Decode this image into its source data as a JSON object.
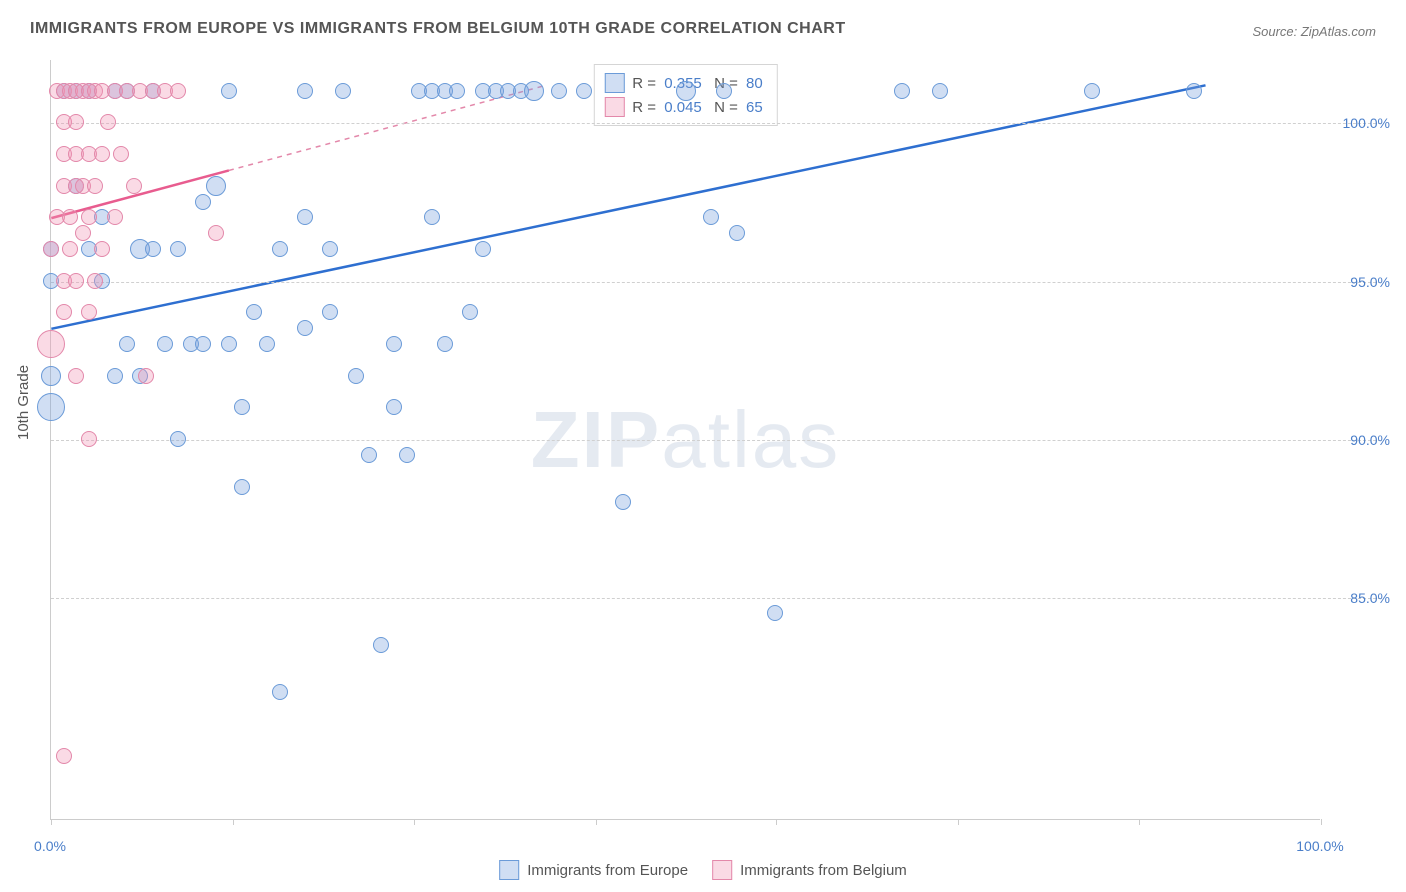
{
  "title": "IMMIGRANTS FROM EUROPE VS IMMIGRANTS FROM BELGIUM 10TH GRADE CORRELATION CHART",
  "source_label": "Source: ",
  "source_name": "ZipAtlas.com",
  "watermark": {
    "bold": "ZIP",
    "rest": "atlas"
  },
  "y_axis_label": "10th Grade",
  "chart": {
    "type": "scatter",
    "xlim": [
      0,
      100
    ],
    "ylim": [
      78,
      102
    ],
    "y_ticks": [
      85.0,
      90.0,
      95.0,
      100.0
    ],
    "y_tick_labels": [
      "85.0%",
      "90.0%",
      "95.0%",
      "100.0%"
    ],
    "y_tick_color": "#4a7ec9",
    "x_ticks": [
      0,
      14.3,
      28.6,
      42.9,
      57.1,
      71.4,
      85.7,
      100
    ],
    "x_end_labels": {
      "min": "0.0%",
      "max": "100.0%"
    },
    "x_label_color": "#4a7ec9",
    "grid_color": "#d0d0d0",
    "background_color": "#ffffff",
    "series": [
      {
        "name": "Immigrants from Europe",
        "fill": "rgba(120,160,220,0.35)",
        "stroke": "#6b9bd8",
        "trend_color": "#2e6fd0",
        "trend_dash_color": "#6b9bd8",
        "r_value": "0.355",
        "n_value": "80",
        "trend": {
          "x1": 0,
          "y1": 93.5,
          "x2": 91,
          "y2": 101.2,
          "x_solid_end": 91
        },
        "points": [
          {
            "x": 0,
            "y": 91,
            "r": 14
          },
          {
            "x": 0,
            "y": 92,
            "r": 10
          },
          {
            "x": 0,
            "y": 95,
            "r": 8
          },
          {
            "x": 0,
            "y": 96,
            "r": 8
          },
          {
            "x": 1,
            "y": 101,
            "r": 8
          },
          {
            "x": 2,
            "y": 101,
            "r": 8
          },
          {
            "x": 2,
            "y": 98,
            "r": 8
          },
          {
            "x": 3,
            "y": 96,
            "r": 8
          },
          {
            "x": 3,
            "y": 101,
            "r": 8
          },
          {
            "x": 4,
            "y": 97,
            "r": 8
          },
          {
            "x": 4,
            "y": 95,
            "r": 8
          },
          {
            "x": 5,
            "y": 92,
            "r": 8
          },
          {
            "x": 5,
            "y": 101,
            "r": 8
          },
          {
            "x": 6,
            "y": 93,
            "r": 8
          },
          {
            "x": 6,
            "y": 101,
            "r": 8
          },
          {
            "x": 7,
            "y": 96,
            "r": 10
          },
          {
            "x": 7,
            "y": 92,
            "r": 8
          },
          {
            "x": 8,
            "y": 101,
            "r": 8
          },
          {
            "x": 8,
            "y": 96,
            "r": 8
          },
          {
            "x": 9,
            "y": 93,
            "r": 8
          },
          {
            "x": 10,
            "y": 96,
            "r": 8
          },
          {
            "x": 10,
            "y": 90,
            "r": 8
          },
          {
            "x": 11,
            "y": 93,
            "r": 8
          },
          {
            "x": 12,
            "y": 97.5,
            "r": 8
          },
          {
            "x": 12,
            "y": 93,
            "r": 8
          },
          {
            "x": 13,
            "y": 98,
            "r": 10
          },
          {
            "x": 14,
            "y": 101,
            "r": 8
          },
          {
            "x": 14,
            "y": 93,
            "r": 8
          },
          {
            "x": 15,
            "y": 91,
            "r": 8
          },
          {
            "x": 15,
            "y": 88.5,
            "r": 8
          },
          {
            "x": 16,
            "y": 94,
            "r": 8
          },
          {
            "x": 17,
            "y": 93,
            "r": 8
          },
          {
            "x": 18,
            "y": 82,
            "r": 8
          },
          {
            "x": 18,
            "y": 96,
            "r": 8
          },
          {
            "x": 20,
            "y": 97,
            "r": 8
          },
          {
            "x": 20,
            "y": 101,
            "r": 8
          },
          {
            "x": 20,
            "y": 93.5,
            "r": 8
          },
          {
            "x": 22,
            "y": 96,
            "r": 8
          },
          {
            "x": 22,
            "y": 94,
            "r": 8
          },
          {
            "x": 23,
            "y": 101,
            "r": 8
          },
          {
            "x": 24,
            "y": 92,
            "r": 8
          },
          {
            "x": 25,
            "y": 89.5,
            "r": 8
          },
          {
            "x": 26,
            "y": 83.5,
            "r": 8
          },
          {
            "x": 27,
            "y": 91,
            "r": 8
          },
          {
            "x": 27,
            "y": 93,
            "r": 8
          },
          {
            "x": 28,
            "y": 89.5,
            "r": 8
          },
          {
            "x": 29,
            "y": 101,
            "r": 8
          },
          {
            "x": 30,
            "y": 101,
            "r": 8
          },
          {
            "x": 30,
            "y": 97,
            "r": 8
          },
          {
            "x": 31,
            "y": 101,
            "r": 8
          },
          {
            "x": 31,
            "y": 93,
            "r": 8
          },
          {
            "x": 32,
            "y": 101,
            "r": 8
          },
          {
            "x": 33,
            "y": 94,
            "r": 8
          },
          {
            "x": 34,
            "y": 101,
            "r": 8
          },
          {
            "x": 34,
            "y": 96,
            "r": 8
          },
          {
            "x": 35,
            "y": 101,
            "r": 8
          },
          {
            "x": 36,
            "y": 101,
            "r": 8
          },
          {
            "x": 37,
            "y": 101,
            "r": 8
          },
          {
            "x": 38,
            "y": 101,
            "r": 10
          },
          {
            "x": 40,
            "y": 101,
            "r": 8
          },
          {
            "x": 42,
            "y": 101,
            "r": 8
          },
          {
            "x": 45,
            "y": 88,
            "r": 8
          },
          {
            "x": 50,
            "y": 101,
            "r": 10
          },
          {
            "x": 52,
            "y": 97,
            "r": 8
          },
          {
            "x": 53,
            "y": 101,
            "r": 8
          },
          {
            "x": 54,
            "y": 96.5,
            "r": 8
          },
          {
            "x": 57,
            "y": 84.5,
            "r": 8
          },
          {
            "x": 67,
            "y": 101,
            "r": 8
          },
          {
            "x": 70,
            "y": 101,
            "r": 8
          },
          {
            "x": 82,
            "y": 101,
            "r": 8
          },
          {
            "x": 90,
            "y": 101,
            "r": 8
          }
        ]
      },
      {
        "name": "Immigrants from Belgium",
        "fill": "rgba(240,150,180,0.35)",
        "stroke": "#e388aa",
        "trend_color": "#e85c8f",
        "trend_dash_color": "#e388aa",
        "r_value": "0.045",
        "n_value": "65",
        "trend": {
          "x1": 0,
          "y1": 97,
          "x2": 39,
          "y2": 101.2,
          "x_solid_end": 14
        },
        "points": [
          {
            "x": 0,
            "y": 93,
            "r": 14
          },
          {
            "x": 0,
            "y": 96,
            "r": 8
          },
          {
            "x": 0.5,
            "y": 97,
            "r": 8
          },
          {
            "x": 0.5,
            "y": 101,
            "r": 8
          },
          {
            "x": 1,
            "y": 80,
            "r": 8
          },
          {
            "x": 1,
            "y": 94,
            "r": 8
          },
          {
            "x": 1,
            "y": 95,
            "r": 8
          },
          {
            "x": 1,
            "y": 98,
            "r": 8
          },
          {
            "x": 1,
            "y": 99,
            "r": 8
          },
          {
            "x": 1,
            "y": 100,
            "r": 8
          },
          {
            "x": 1,
            "y": 101,
            "r": 8
          },
          {
            "x": 1.5,
            "y": 96,
            "r": 8
          },
          {
            "x": 1.5,
            "y": 97,
            "r": 8
          },
          {
            "x": 1.5,
            "y": 101,
            "r": 8
          },
          {
            "x": 2,
            "y": 92,
            "r": 8
          },
          {
            "x": 2,
            "y": 95,
            "r": 8
          },
          {
            "x": 2,
            "y": 98,
            "r": 8
          },
          {
            "x": 2,
            "y": 99,
            "r": 8
          },
          {
            "x": 2,
            "y": 100,
            "r": 8
          },
          {
            "x": 2,
            "y": 101,
            "r": 8
          },
          {
            "x": 2.5,
            "y": 96.5,
            "r": 8
          },
          {
            "x": 2.5,
            "y": 98,
            "r": 8
          },
          {
            "x": 2.5,
            "y": 101,
            "r": 8
          },
          {
            "x": 3,
            "y": 90,
            "r": 8
          },
          {
            "x": 3,
            "y": 94,
            "r": 8
          },
          {
            "x": 3,
            "y": 97,
            "r": 8
          },
          {
            "x": 3,
            "y": 99,
            "r": 8
          },
          {
            "x": 3,
            "y": 101,
            "r": 8
          },
          {
            "x": 3.5,
            "y": 95,
            "r": 8
          },
          {
            "x": 3.5,
            "y": 98,
            "r": 8
          },
          {
            "x": 3.5,
            "y": 101,
            "r": 8
          },
          {
            "x": 4,
            "y": 96,
            "r": 8
          },
          {
            "x": 4,
            "y": 99,
            "r": 8
          },
          {
            "x": 4,
            "y": 101,
            "r": 8
          },
          {
            "x": 4.5,
            "y": 100,
            "r": 8
          },
          {
            "x": 5,
            "y": 97,
            "r": 8
          },
          {
            "x": 5,
            "y": 101,
            "r": 8
          },
          {
            "x": 5.5,
            "y": 99,
            "r": 8
          },
          {
            "x": 6,
            "y": 101,
            "r": 8
          },
          {
            "x": 6.5,
            "y": 98,
            "r": 8
          },
          {
            "x": 7,
            "y": 101,
            "r": 8
          },
          {
            "x": 7.5,
            "y": 92,
            "r": 8
          },
          {
            "x": 8,
            "y": 101,
            "r": 8
          },
          {
            "x": 9,
            "y": 101,
            "r": 8
          },
          {
            "x": 10,
            "y": 101,
            "r": 8
          },
          {
            "x": 13,
            "y": 96.5,
            "r": 8
          }
        ]
      }
    ],
    "legend_labels": {
      "r": "R = ",
      "n": "N = "
    },
    "bottom_legend": [
      {
        "label": "Immigrants from Europe",
        "fill": "rgba(120,160,220,0.35)",
        "stroke": "#6b9bd8"
      },
      {
        "label": "Immigrants from Belgium",
        "fill": "rgba(240,150,180,0.35)",
        "stroke": "#e388aa"
      }
    ]
  }
}
